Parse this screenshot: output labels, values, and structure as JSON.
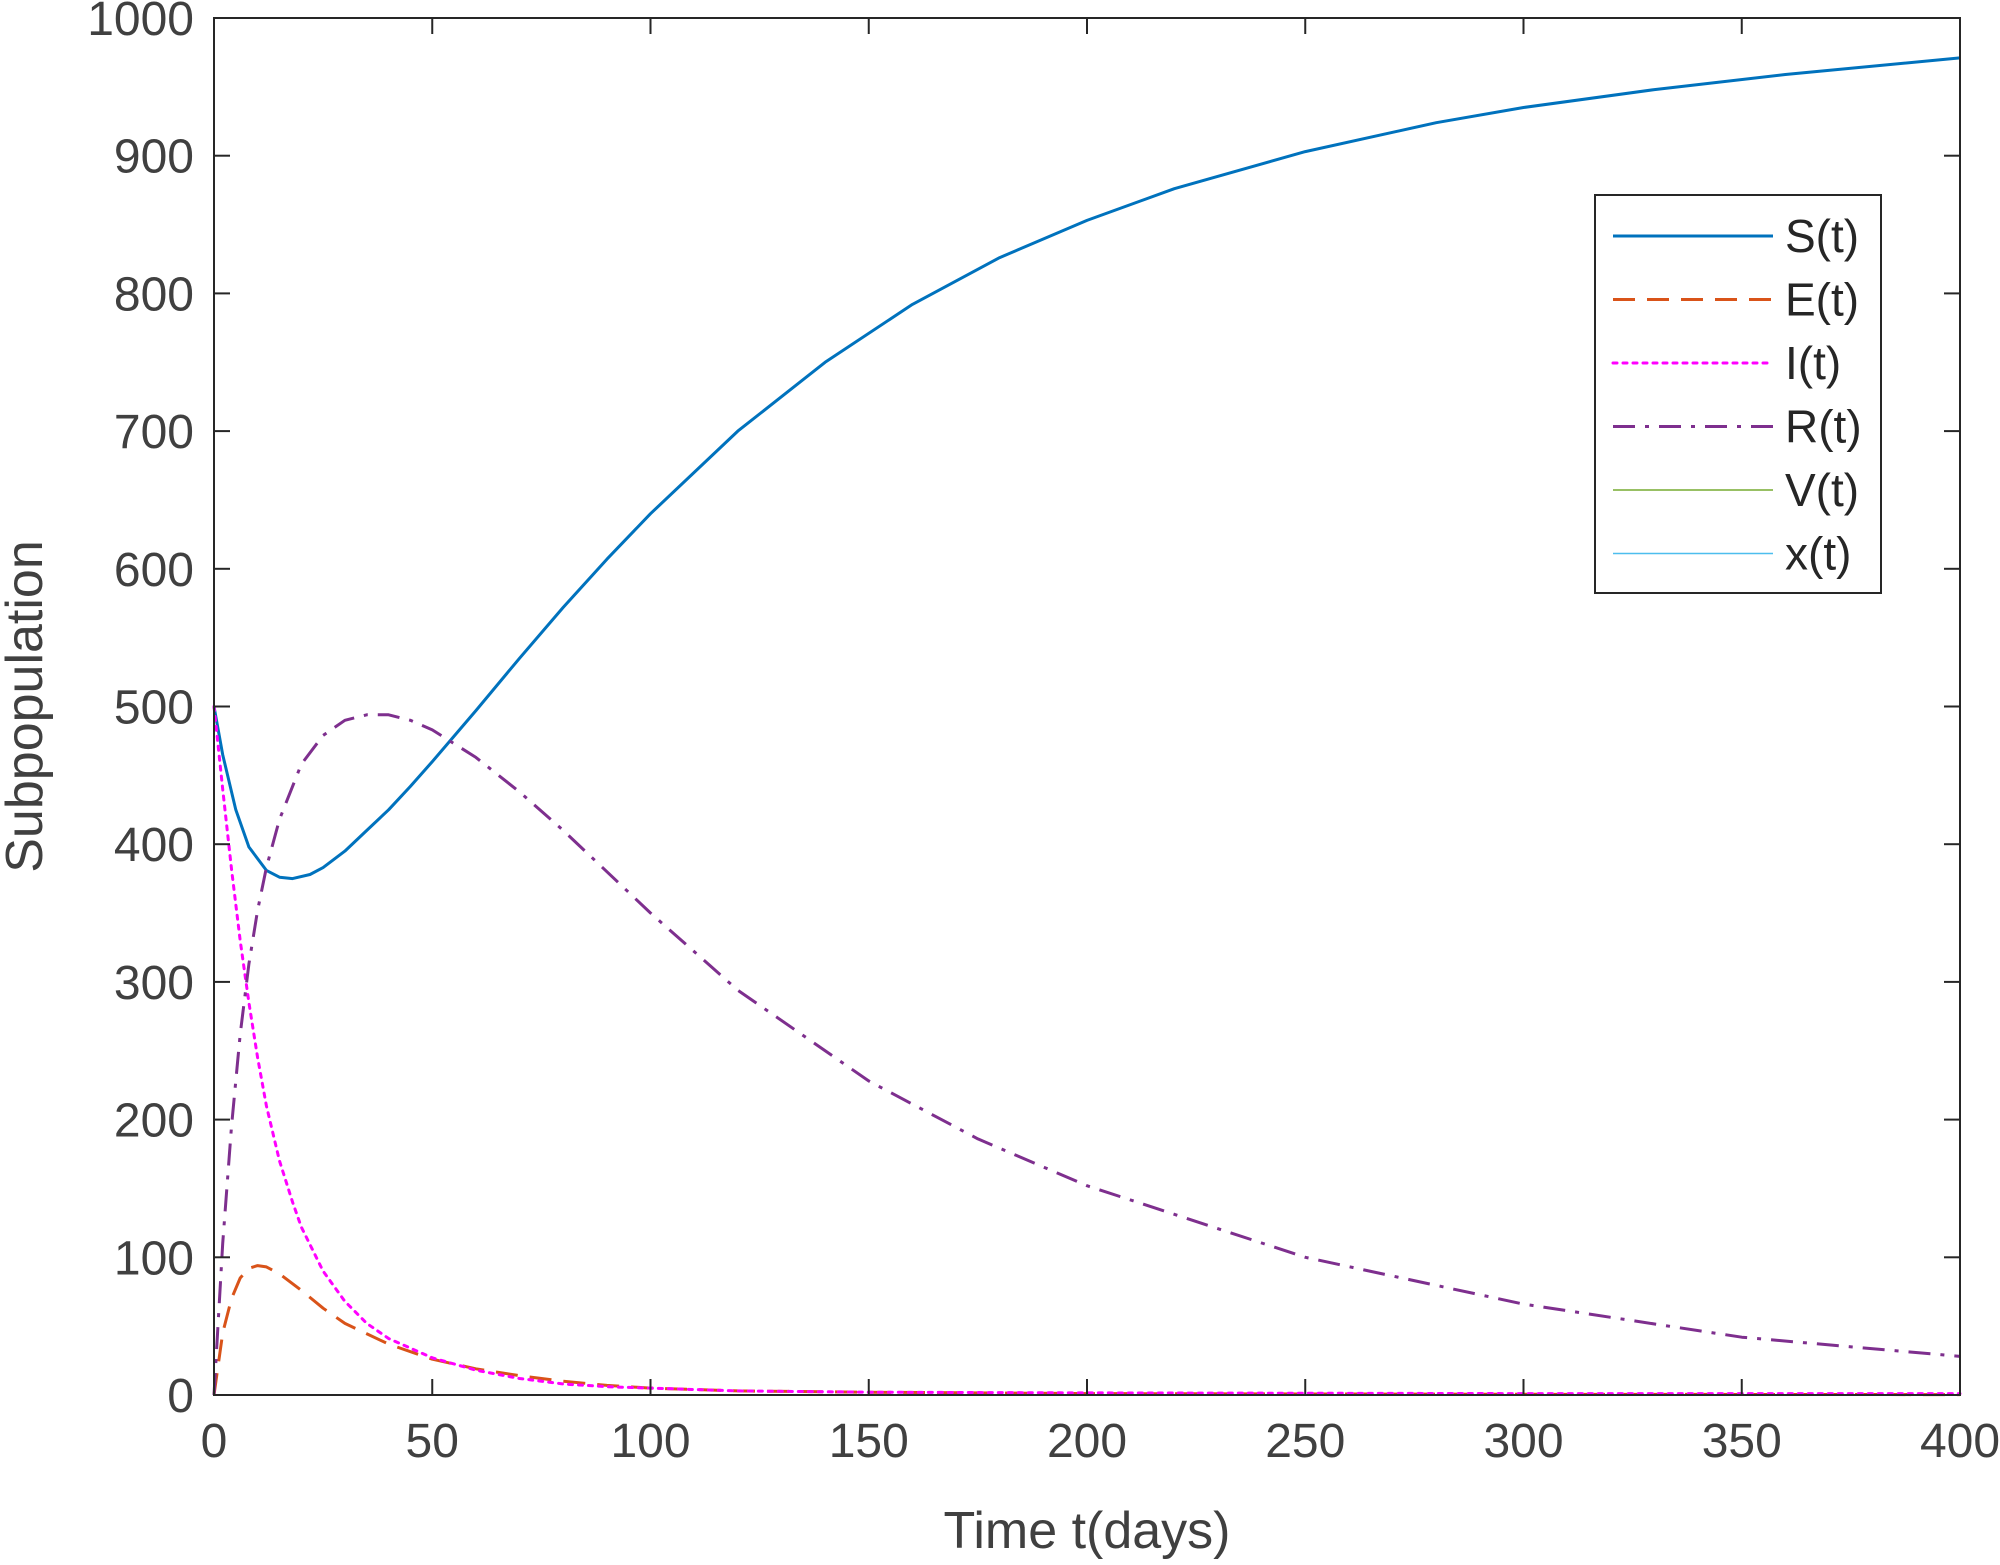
{
  "chart_data": {
    "type": "line",
    "title": "",
    "xlabel": "Time t(days)",
    "ylabel": "Subpopulation",
    "xlim": [
      0,
      400
    ],
    "ylim": [
      0,
      1000
    ],
    "xticks": [
      0,
      50,
      100,
      150,
      200,
      250,
      300,
      350,
      400
    ],
    "yticks": [
      0,
      100,
      200,
      300,
      400,
      500,
      600,
      700,
      800,
      900,
      1000
    ],
    "grid": false,
    "legend_position": "top-right",
    "series": [
      {
        "name": "S(t)",
        "color": "#0072bd",
        "style": "solid",
        "width": 3,
        "x": [
          0,
          2,
          5,
          8,
          12,
          15,
          18,
          22,
          25,
          30,
          35,
          40,
          45,
          50,
          60,
          70,
          80,
          90,
          100,
          120,
          140,
          160,
          180,
          200,
          220,
          250,
          280,
          300,
          330,
          360,
          400
        ],
        "y": [
          500,
          465,
          425,
          398,
          381,
          376,
          375,
          378,
          383,
          395,
          410,
          425,
          442,
          460,
          497,
          535,
          572,
          607,
          640,
          700,
          750,
          792,
          826,
          853,
          876,
          903,
          924,
          935,
          948,
          959,
          971
        ]
      },
      {
        "name": "E(t)",
        "color": "#d95319",
        "style": "dashed",
        "width": 3,
        "x": [
          0,
          2,
          4,
          6,
          8,
          10,
          12,
          15,
          20,
          25,
          30,
          40,
          50,
          60,
          70,
          80,
          90,
          100,
          120,
          150,
          200,
          300,
          400
        ],
        "y": [
          0,
          45,
          70,
          85,
          92,
          94,
          93,
          88,
          76,
          63,
          52,
          37,
          26,
          19,
          14,
          10,
          7,
          5,
          3,
          2,
          1,
          0.5,
          0.3
        ]
      },
      {
        "name": "I(t)",
        "color": "#ff00ff",
        "style": "dotted",
        "width": 3,
        "x": [
          0,
          2,
          4,
          6,
          8,
          10,
          12,
          15,
          18,
          20,
          25,
          30,
          35,
          40,
          50,
          60,
          70,
          80,
          90,
          100,
          120,
          150,
          200,
          300,
          400
        ],
        "y": [
          500,
          440,
          382,
          330,
          285,
          245,
          210,
          170,
          140,
          122,
          90,
          68,
          52,
          41,
          27,
          18,
          12,
          8,
          6,
          5,
          3,
          2,
          1.5,
          1,
          1
        ]
      },
      {
        "name": "R(t)",
        "color": "#7e2f8e",
        "style": "dashdot",
        "width": 3,
        "x": [
          0,
          2,
          4,
          6,
          8,
          10,
          12,
          15,
          20,
          25,
          30,
          35,
          40,
          45,
          50,
          60,
          70,
          80,
          100,
          120,
          150,
          175,
          200,
          250,
          300,
          350,
          400
        ],
        "y": [
          0,
          110,
          195,
          262,
          313,
          352,
          383,
          418,
          458,
          479,
          490,
          494,
          494,
          490,
          483,
          463,
          438,
          410,
          350,
          294,
          228,
          186,
          152,
          100,
          66,
          42,
          28
        ]
      },
      {
        "name": "V(t)",
        "color": "#77ac30",
        "style": "solid",
        "width": 1.5,
        "x": [
          0,
          400
        ],
        "y": [
          0,
          0
        ]
      },
      {
        "name": "x(t)",
        "color": "#4dbeee",
        "style": "solid",
        "width": 1.5,
        "x": [
          0,
          400
        ],
        "y": [
          0,
          0
        ]
      }
    ]
  }
}
